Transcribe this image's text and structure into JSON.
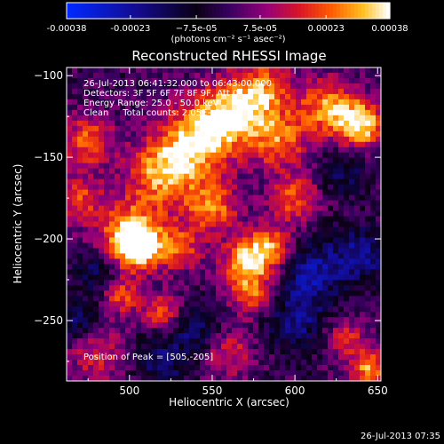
{
  "colorbar": {
    "ticks": [
      {
        "value": -0.00038,
        "label": "-0.00038"
      },
      {
        "value": -0.00023,
        "label": "-0.00023"
      },
      {
        "value": -7.5e-05,
        "label": "−7.5e-05"
      },
      {
        "value": 7.5e-05,
        "label": "7.5e-05"
      },
      {
        "value": 0.00023,
        "label": "0.00023"
      },
      {
        "value": 0.00038,
        "label": "0.00038"
      }
    ],
    "range": [
      -0.00038,
      0.00038
    ],
    "unit_label": "(photons cm⁻² s⁻¹ asec⁻²)"
  },
  "chart_data": {
    "type": "heatmap",
    "title": "Reconstructed RHESSI Image",
    "xlabel": "Heliocentric X (arcsec)",
    "ylabel": "Heliocentric Y (arcsec)",
    "xlim": [
      462,
      652
    ],
    "ylim": [
      -287,
      -95
    ],
    "xticks": [
      500,
      550,
      600,
      650
    ],
    "yticks": [
      -100,
      -150,
      -200,
      -250
    ],
    "annotations": {
      "time_range": "26-Jul-2013 06:41:32.000 to 06:43:00.000",
      "detectors": "Detectors: 3F 5F 6F 7F 8F 9F, Att 0",
      "energy": "Energy Range: 25.0 - 50.0 keV",
      "clean": "Clean     Total counts: 2.05E+03",
      "peak": "Position of Peak = [505,-205]"
    },
    "peak": {
      "x": 505,
      "y": -205
    },
    "hotspots": [
      {
        "x": 505,
        "y": -205,
        "value": 1.0,
        "spread": 9
      },
      {
        "x": 500,
        "y": -195,
        "value": 0.75,
        "spread": 14
      },
      {
        "x": 495,
        "y": -235,
        "value": 0.55,
        "spread": 8
      },
      {
        "x": 520,
        "y": -160,
        "value": 0.8,
        "spread": 14
      },
      {
        "x": 540,
        "y": -140,
        "value": 0.85,
        "spread": 15
      },
      {
        "x": 560,
        "y": -125,
        "value": 0.8,
        "spread": 14
      },
      {
        "x": 580,
        "y": -110,
        "value": 0.7,
        "spread": 13
      },
      {
        "x": 640,
        "y": -130,
        "value": 0.95,
        "spread": 10
      },
      {
        "x": 620,
        "y": -120,
        "value": 0.75,
        "spread": 12
      },
      {
        "x": 590,
        "y": -140,
        "value": 0.65,
        "spread": 12
      },
      {
        "x": 550,
        "y": -180,
        "value": 0.7,
        "spread": 11
      },
      {
        "x": 570,
        "y": -215,
        "value": 0.85,
        "spread": 10
      },
      {
        "x": 585,
        "y": -205,
        "value": 0.75,
        "spread": 10
      },
      {
        "x": 575,
        "y": -235,
        "value": 0.6,
        "spread": 9
      },
      {
        "x": 530,
        "y": -205,
        "value": 0.55,
        "spread": 10
      },
      {
        "x": 600,
        "y": -175,
        "value": 0.6,
        "spread": 10
      },
      {
        "x": 475,
        "y": -140,
        "value": 0.6,
        "spread": 11
      },
      {
        "x": 470,
        "y": -175,
        "value": 0.5,
        "spread": 10
      },
      {
        "x": 520,
        "y": -245,
        "value": 0.55,
        "spread": 8
      },
      {
        "x": 645,
        "y": -280,
        "value": 0.75,
        "spread": 9
      },
      {
        "x": 630,
        "y": -260,
        "value": 0.5,
        "spread": 8
      },
      {
        "x": 480,
        "y": -270,
        "value": 0.45,
        "spread": 12
      },
      {
        "x": 560,
        "y": -270,
        "value": 0.45,
        "spread": 10
      },
      {
        "x": 610,
        "y": -220,
        "value": -0.6,
        "spread": 14
      },
      {
        "x": 640,
        "y": -210,
        "value": -0.55,
        "spread": 12
      },
      {
        "x": 600,
        "y": -250,
        "value": -0.5,
        "spread": 13
      },
      {
        "x": 520,
        "y": -275,
        "value": -0.5,
        "spread": 11
      },
      {
        "x": 540,
        "y": -255,
        "value": -0.45,
        "spread": 10
      },
      {
        "x": 480,
        "y": -220,
        "value": -0.45,
        "spread": 9
      },
      {
        "x": 470,
        "y": -250,
        "value": -0.45,
        "spread": 9
      },
      {
        "x": 630,
        "y": -160,
        "value": -0.4,
        "spread": 10
      }
    ]
  },
  "footer": {
    "timestamp": "26-Jul-2013 07:35"
  }
}
